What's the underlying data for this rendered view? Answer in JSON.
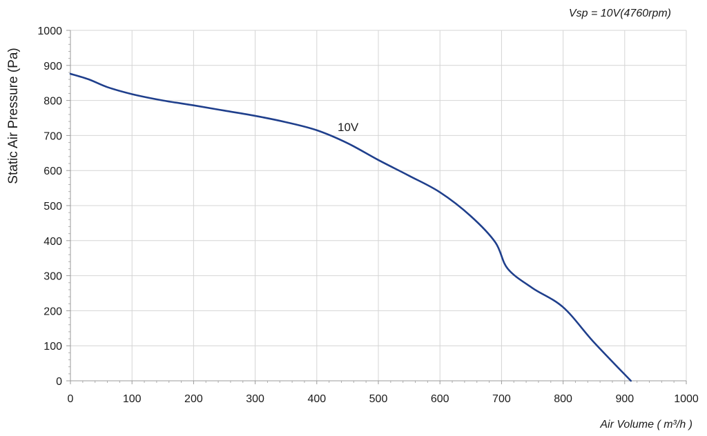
{
  "chart_data": {
    "type": "line",
    "title": "Vsp = 10V(4760rpm)",
    "xlabel": "Air Volume ( m³/h )",
    "ylabel": "Static Air Pressure  (Pa)",
    "xlim": [
      0,
      1000
    ],
    "ylim": [
      0,
      1000
    ],
    "xticks": [
      0,
      100,
      200,
      300,
      400,
      500,
      600,
      700,
      800,
      900,
      1000
    ],
    "yticks": [
      0,
      100,
      200,
      300,
      400,
      500,
      600,
      700,
      800,
      900,
      1000
    ],
    "grid": true,
    "legend": "none",
    "series": [
      {
        "name": "10V",
        "color": "#1f3f8c",
        "x": [
          0,
          30,
          60,
          100,
          150,
          200,
          250,
          300,
          350,
          400,
          450,
          500,
          550,
          600,
          650,
          690,
          710,
          750,
          800,
          850,
          910
        ],
        "y": [
          876,
          860,
          838,
          818,
          800,
          786,
          771,
          756,
          738,
          715,
          678,
          630,
          585,
          538,
          470,
          395,
          320,
          265,
          210,
          110,
          0
        ]
      }
    ]
  }
}
